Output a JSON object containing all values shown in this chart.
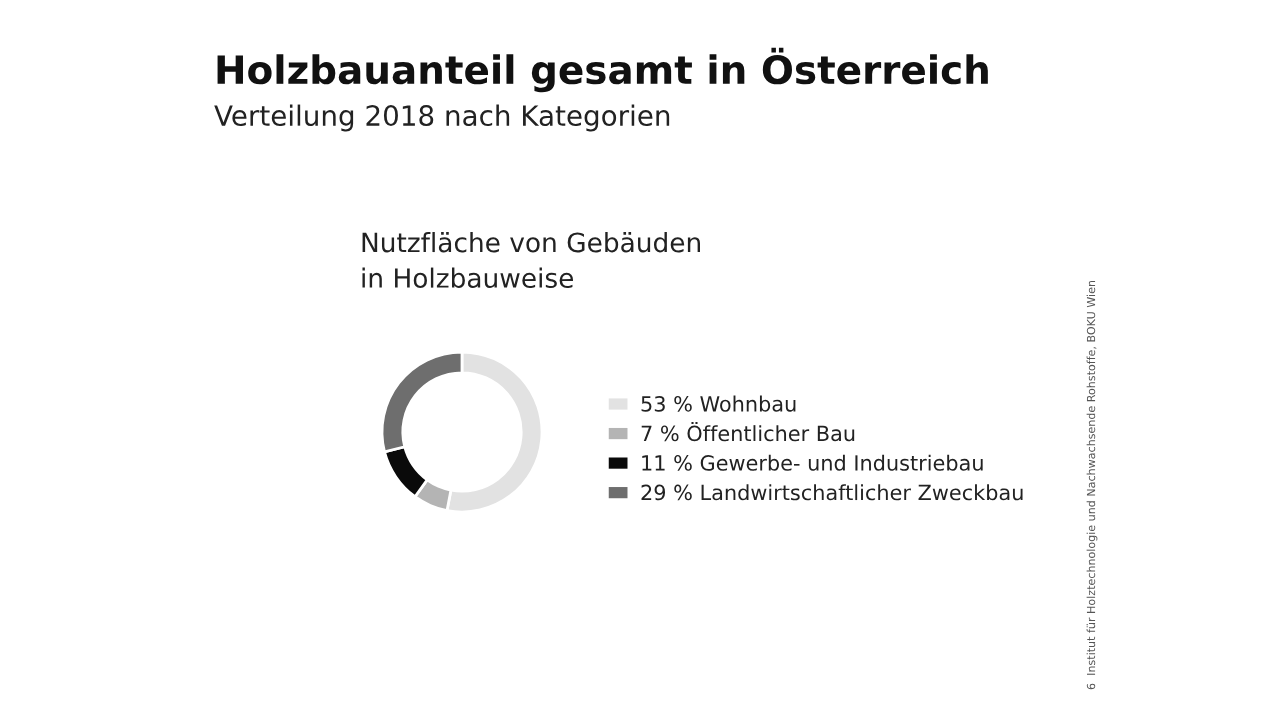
{
  "chart_data": {
    "type": "donut",
    "title": "Holzbauanteil gesamt in Österreich",
    "subtitle": "Verteilung 2018 nach Kategorien",
    "categories": [
      "Wohnbau",
      "Öffentlicher Bau",
      "Gewerbe- und Industriebau",
      "Landwirtschaftlicher Zweckbau"
    ],
    "values": [
      53,
      7,
      11,
      29
    ],
    "colors": [
      "#e2e2e2",
      "#b4b4b4",
      "#0a0a0a",
      "#6e6e6e"
    ],
    "value_labels": [
      "53 %",
      "7 %",
      "11 %",
      "29 %"
    ],
    "legend": "right",
    "annotations": [
      "Nutzfläche von Gebäuden\nin Holzbauweise",
      "6  Institut für Holztechnologie und Nachwachsende Rohstoffe, BOKU Wien"
    ]
  }
}
